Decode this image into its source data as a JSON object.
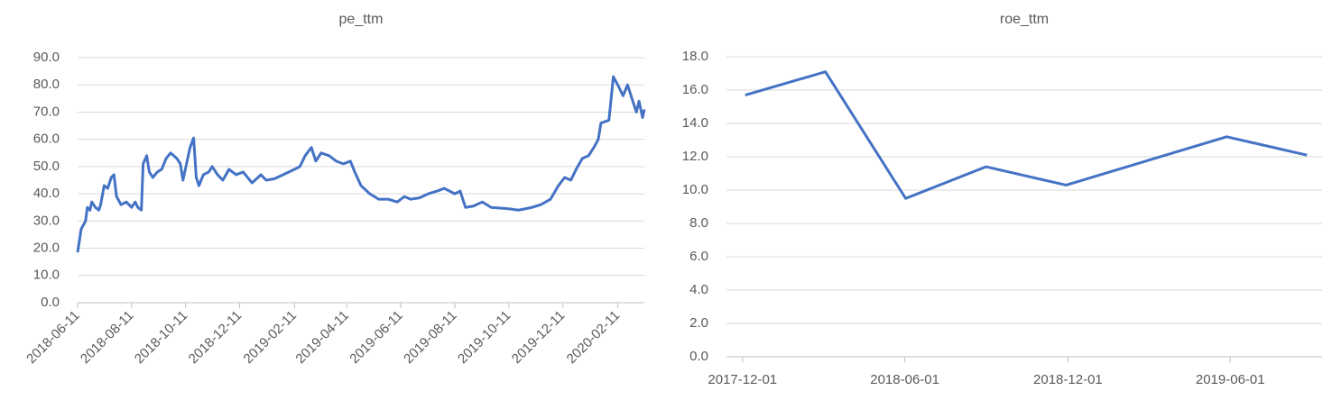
{
  "chart_data": [
    {
      "type": "line",
      "title": "pe_ttm",
      "color": "#4472c4",
      "grid": true,
      "x": [
        "2018-06-11",
        "2018-06-15",
        "2018-06-20",
        "2018-06-22",
        "2018-06-25",
        "2018-06-27",
        "2018-07-01",
        "2018-07-05",
        "2018-07-07",
        "2018-07-11",
        "2018-07-15",
        "2018-07-19",
        "2018-07-22",
        "2018-07-25",
        "2018-07-30",
        "2018-08-05",
        "2018-08-11",
        "2018-08-15",
        "2018-08-18",
        "2018-08-22",
        "2018-08-24",
        "2018-08-28",
        "2018-08-31",
        "2018-09-04",
        "2018-09-09",
        "2018-09-14",
        "2018-09-19",
        "2018-09-24",
        "2018-10-01",
        "2018-10-05",
        "2018-10-08",
        "2018-10-12",
        "2018-10-16",
        "2018-10-20",
        "2018-10-23",
        "2018-10-26",
        "2018-10-31",
        "2018-11-06",
        "2018-11-10",
        "2018-11-16",
        "2018-11-22",
        "2018-11-29",
        "2018-12-07",
        "2018-12-15",
        "2018-12-25",
        "2019-01-04",
        "2019-01-10",
        "2019-01-19",
        "2019-01-29",
        "2019-02-11",
        "2019-02-17",
        "2019-02-23",
        "2019-03-02",
        "2019-03-07",
        "2019-03-13",
        "2019-03-22",
        "2019-03-30",
        "2019-04-07",
        "2019-04-15",
        "2019-04-20",
        "2019-04-27",
        "2019-05-07",
        "2019-05-17",
        "2019-05-28",
        "2019-06-07",
        "2019-06-15",
        "2019-06-22",
        "2019-07-02",
        "2019-07-12",
        "2019-07-22",
        "2019-07-30",
        "2019-08-11",
        "2019-08-17",
        "2019-08-23",
        "2019-09-01",
        "2019-09-11",
        "2019-09-21",
        "2019-10-11",
        "2019-10-22",
        "2019-11-06",
        "2019-11-16",
        "2019-11-27",
        "2019-12-06",
        "2019-12-13",
        "2019-12-20",
        "2019-12-26",
        "2020-01-02",
        "2020-01-09",
        "2020-01-15",
        "2020-01-20",
        "2020-01-23",
        "2020-02-01",
        "2020-02-06",
        "2020-02-11",
        "2020-02-17",
        "2020-02-22",
        "2020-02-27",
        "2020-03-03",
        "2020-03-06",
        "2020-03-10",
        "2020-03-12"
      ],
      "values": [
        18.5,
        27,
        30,
        35,
        34,
        37,
        35,
        34,
        36,
        43,
        42,
        46,
        47,
        39,
        36,
        37,
        35,
        37,
        35,
        34,
        51,
        54,
        48,
        46,
        48,
        49,
        53,
        55,
        53,
        51,
        45,
        51,
        57,
        60.5,
        46,
        43,
        47,
        48,
        50,
        47,
        45,
        49,
        47,
        48,
        44,
        47,
        45,
        45.5,
        47,
        49,
        50,
        54,
        57,
        52,
        55,
        54,
        52,
        51,
        52,
        48,
        43,
        40,
        38,
        38,
        37,
        39,
        38,
        38.5,
        40,
        41,
        42,
        40,
        41,
        35,
        35.5,
        37,
        35,
        34.5,
        34,
        35,
        36,
        38,
        43,
        46,
        45,
        49,
        53,
        54,
        57,
        60,
        66,
        67,
        83,
        80,
        76,
        80,
        75,
        70,
        74,
        68,
        71
      ],
      "xlim": [
        "2018-06-11",
        "2020-03-12"
      ],
      "xticks": [
        "2018-06-11",
        "2018-08-11",
        "2018-10-11",
        "2018-12-11",
        "2019-02-11",
        "2019-04-11",
        "2019-06-11",
        "2019-08-11",
        "2019-10-11",
        "2019-12-11",
        "2020-02-11"
      ],
      "ylim": [
        0,
        90
      ],
      "yticks": [
        {
          "value": 0,
          "label": "0.0"
        },
        {
          "value": 10,
          "label": "10.0"
        },
        {
          "value": 20,
          "label": "20.0"
        },
        {
          "value": 30,
          "label": "30.0"
        },
        {
          "value": 40,
          "label": "40.0"
        },
        {
          "value": 50,
          "label": "50.0"
        },
        {
          "value": 60,
          "label": "60.0"
        },
        {
          "value": 70,
          "label": "70.0"
        },
        {
          "value": 80,
          "label": "80.0"
        },
        {
          "value": 90,
          "label": "90.0"
        }
      ]
    },
    {
      "type": "line",
      "title": "roe_ttm",
      "color": "#4472c4",
      "grid": true,
      "x": [
        "2017-12-04",
        "2018-03-04",
        "2018-06-02",
        "2018-08-31",
        "2018-11-29",
        "2019-05-28",
        "2019-08-26"
      ],
      "values": [
        15.7,
        17.1,
        9.5,
        11.4,
        10.3,
        13.2,
        12.1
      ],
      "xlim": [
        "2017-11-13",
        "2019-09-12"
      ],
      "xticks": [
        "2017-12-01",
        "2018-06-01",
        "2018-12-01",
        "2019-06-01"
      ],
      "ylim": [
        0,
        18
      ],
      "yticks": [
        {
          "value": 0,
          "label": "0.0"
        },
        {
          "value": 2,
          "label": "2.0"
        },
        {
          "value": 4,
          "label": "4.0"
        },
        {
          "value": 6,
          "label": "6.0"
        },
        {
          "value": 8,
          "label": "8.0"
        },
        {
          "value": 10,
          "label": "10.0"
        },
        {
          "value": 12,
          "label": "12.0"
        },
        {
          "value": 14,
          "label": "14.0"
        },
        {
          "value": 16,
          "label": "16.0"
        },
        {
          "value": 18,
          "label": "18.0"
        }
      ]
    }
  ]
}
